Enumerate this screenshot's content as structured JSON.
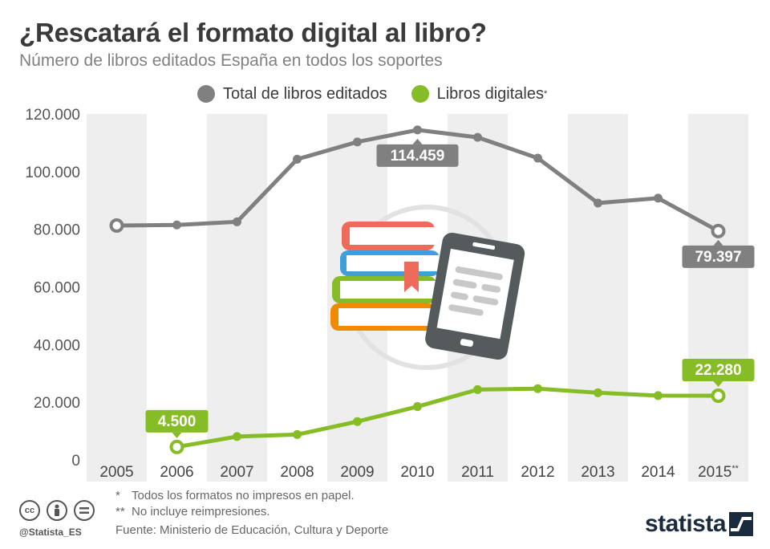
{
  "title": "¿Rescatará el formato digital al libro?",
  "subtitle": "Número de libros editados España en todos los soportes",
  "legend": {
    "total": "Total de libros editados",
    "digital": "Libros digitales",
    "digital_mark": "*"
  },
  "colors": {
    "total": "#808080",
    "digital": "#86bc25",
    "band": "#eeeeee"
  },
  "chart_data": {
    "type": "line",
    "categories": [
      "2005",
      "2006",
      "2007",
      "2008",
      "2009",
      "2010",
      "2011",
      "2012",
      "2013",
      "2014",
      "2015"
    ],
    "category_suffix": {
      "2015": "**"
    },
    "series": [
      {
        "name": "Total de libros editados",
        "values": [
          81300,
          81500,
          82600,
          104300,
          110300,
          114459,
          111900,
          104700,
          89100,
          90800,
          79397
        ]
      },
      {
        "name": "Libros digitales",
        "values": [
          null,
          4500,
          8100,
          8800,
          13300,
          18500,
          24400,
          24700,
          23300,
          22300,
          22280
        ]
      }
    ],
    "ylim": [
      0,
      120000
    ],
    "yticks": [
      "0",
      "20.000",
      "40.000",
      "60.000",
      "80.000",
      "100.000",
      "120.000"
    ],
    "ytick_values": [
      0,
      20000,
      40000,
      60000,
      80000,
      100000,
      120000
    ],
    "data_labels": [
      {
        "series": 0,
        "index": 5,
        "text": "114.459"
      },
      {
        "series": 0,
        "index": 10,
        "text": "79.397"
      },
      {
        "series": 1,
        "index": 1,
        "text": "4.500"
      },
      {
        "series": 1,
        "index": 10,
        "text": "22.280"
      }
    ],
    "highlighted_points": [
      {
        "series": 0,
        "index": 0
      },
      {
        "series": 0,
        "index": 10
      },
      {
        "series": 1,
        "index": 1
      },
      {
        "series": 1,
        "index": 10
      }
    ],
    "grid": "alternating vertical bands",
    "legend": "top-center"
  },
  "footnotes": [
    {
      "mark": "*",
      "text": "Todos los formatos no impresos en papel."
    },
    {
      "mark": "**",
      "text": "No incluye reimpresiones."
    }
  ],
  "source": "Fuente: Ministerio de Educación, Cultura y Deporte",
  "handle": "@Statista_ES",
  "brand": "statista",
  "cc_icons": [
    "cc-icon",
    "by-icon",
    "nd-icon"
  ]
}
